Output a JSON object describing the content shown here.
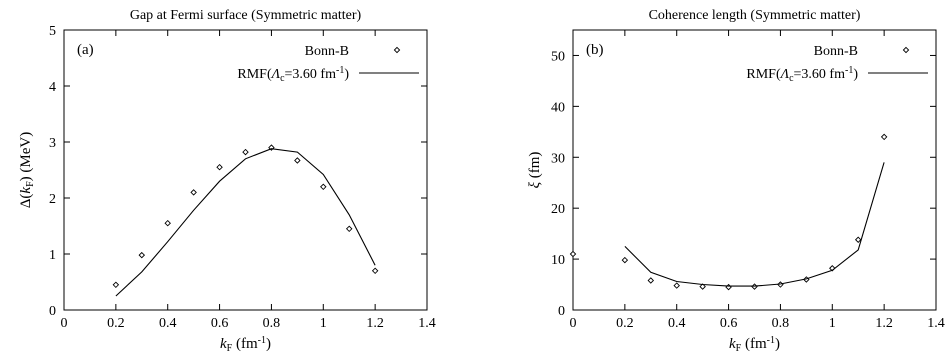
{
  "chart_data": [
    {
      "type": "scatter",
      "panel_label": "(a)",
      "title": "Gap at Fermi surface (Symmetric matter)",
      "xlabel": {
        "main": "k",
        "sub": "F",
        "unit": " (fm",
        "sup": "-1",
        "close": ")"
      },
      "ylabel": {
        "pre": "Δ(",
        "main": "k",
        "sub": "F",
        "post": ") (MeV)"
      },
      "xlim": [
        0,
        1.4
      ],
      "ylim": [
        0,
        5
      ],
      "xticks": [
        "0",
        "0.2",
        "0.4",
        "0.6",
        "0.8",
        "1",
        "1.2",
        "1.4"
      ],
      "yticks": [
        "0",
        "1",
        "2",
        "3",
        "4",
        "5"
      ],
      "grid": false,
      "legend_position": "top-right",
      "series": [
        {
          "name": "Bonn-B",
          "style": "points",
          "x": [
            0.2,
            0.3,
            0.4,
            0.5,
            0.6,
            0.7,
            0.8,
            0.9,
            1.0,
            1.1,
            1.2
          ],
          "y": [
            0.45,
            0.98,
            1.55,
            2.1,
            2.55,
            2.82,
            2.9,
            2.67,
            2.2,
            1.45,
            0.7
          ]
        },
        {
          "name": "RMF(Λ",
          "name_sub": "c",
          "name_tail": "=3.60 fm",
          "name_sup": "-1",
          "name_close": ")",
          "style": "line",
          "x": [
            0.2,
            0.3,
            0.4,
            0.5,
            0.6,
            0.7,
            0.8,
            0.9,
            1.0,
            1.1,
            1.2
          ],
          "y": [
            0.25,
            0.68,
            1.22,
            1.78,
            2.3,
            2.7,
            2.88,
            2.82,
            2.42,
            1.7,
            0.8
          ]
        }
      ]
    },
    {
      "type": "scatter",
      "panel_label": "(b)",
      "title": "Coherence length (Symmetric matter)",
      "xlabel": {
        "main": "k",
        "sub": "F",
        "unit": " (fm",
        "sup": "-1",
        "close": ")"
      },
      "ylabel": {
        "pre": "",
        "main": "ξ",
        "sub": "",
        "post": " (fm)"
      },
      "xlim": [
        0,
        1.4
      ],
      "ylim": [
        0,
        55
      ],
      "xticks": [
        "0",
        "0.2",
        "0.4",
        "0.6",
        "0.8",
        "1",
        "1.2",
        "1.4"
      ],
      "yticks": [
        "0",
        "10",
        "20",
        "30",
        "40",
        "50"
      ],
      "grid": false,
      "legend_position": "top-right",
      "series": [
        {
          "name": "Bonn-B",
          "style": "points",
          "x": [
            0.0,
            0.2,
            0.3,
            0.4,
            0.5,
            0.6,
            0.7,
            0.8,
            0.9,
            1.0,
            1.1,
            1.2
          ],
          "y": [
            11.0,
            9.8,
            5.8,
            4.8,
            4.6,
            4.5,
            4.6,
            5.0,
            6.0,
            8.2,
            13.8,
            34.0
          ]
        },
        {
          "name": "RMF(Λ",
          "name_sub": "c",
          "name_tail": "=3.60 fm",
          "name_sup": "-1",
          "name_close": ")",
          "style": "line",
          "x": [
            0.2,
            0.3,
            0.4,
            0.5,
            0.6,
            0.7,
            0.8,
            0.9,
            1.0,
            1.1,
            1.2
          ],
          "y": [
            12.5,
            7.4,
            5.6,
            5.0,
            4.7,
            4.7,
            5.1,
            6.1,
            7.8,
            11.8,
            29.0
          ]
        }
      ]
    }
  ]
}
